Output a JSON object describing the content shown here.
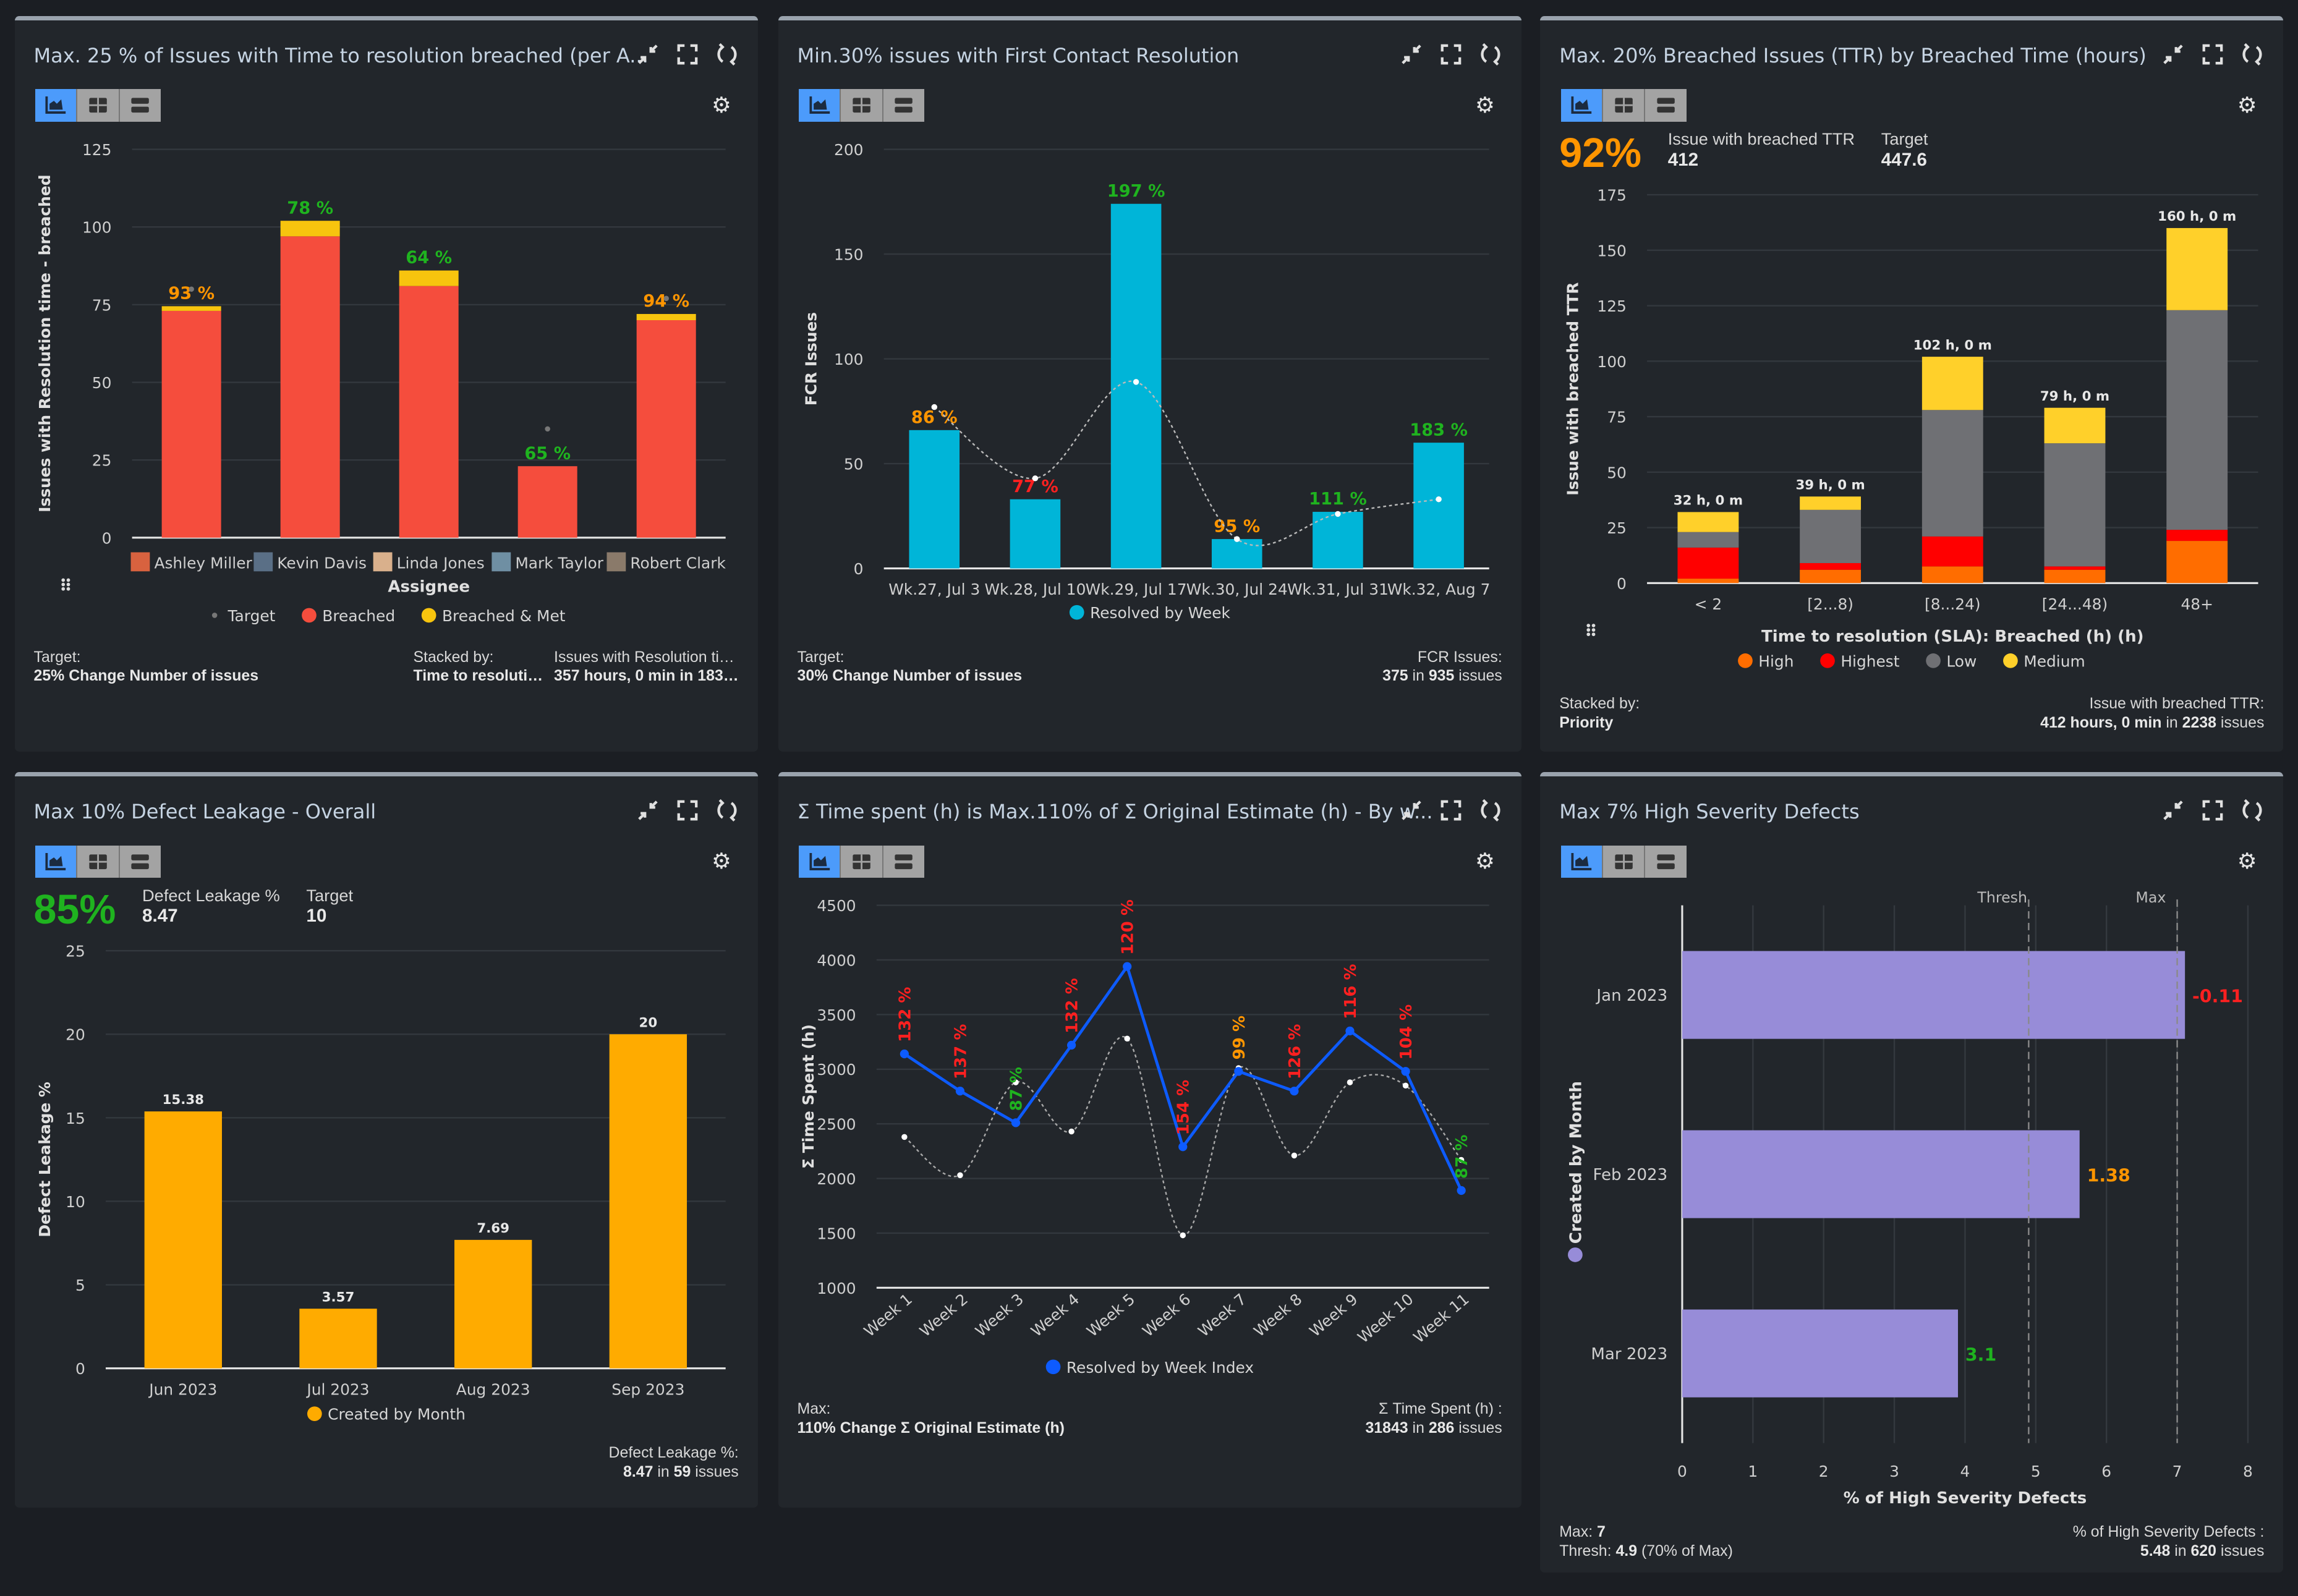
{
  "panels": [
    {
      "title": "Max. 25 % of Issues with Time to resolution breached (per A...",
      "footer": {
        "left_label": "Target:",
        "left_value": "25% Change Number of issues",
        "mid_label": "Stacked by:",
        "mid_value": "Time to resoluti…",
        "right_label": "Issues with Resolution ti…",
        "right_value": "357 hours, 0 min in 183…"
      }
    },
    {
      "title": "Min.30% issues with First Contact Resolution",
      "footer": {
        "left_label": "Target:",
        "left_value": "30% Change Number of issues",
        "right_label": "FCR Issues:",
        "right_value_num": "375",
        "right_value_in": " in ",
        "right_value_total": "935",
        "right_value_suffix": " issues"
      }
    },
    {
      "title": "Max. 20% Breached Issues (TTR) by Breached Time (hours)",
      "kpi": {
        "percent": "92%",
        "percent_color": "#ff9500",
        "metric_label": "Issue with breached TTR",
        "metric_value": "412",
        "target_label": "Target",
        "target_value": "447.6"
      },
      "footer": {
        "left_label": "Stacked by:",
        "left_value": "Priority",
        "right_label": "Issue with breached TTR:",
        "right_value_num": "412 hours, 0 min",
        "right_value_in": " in ",
        "right_value_total": "2238",
        "right_value_suffix": " issues"
      }
    },
    {
      "title": "Max 10% Defect Leakage - Overall",
      "kpi": {
        "percent": "85%",
        "percent_color": "#1fb31f",
        "metric_label": "Defect Leakage %",
        "metric_value": "8.47",
        "target_label": "Target",
        "target_value": "10"
      },
      "footer": {
        "right_label": "Defect Leakage %:",
        "right_value_num": "8.47",
        "right_value_in": " in ",
        "right_value_total": "59",
        "right_value_suffix": " issues"
      }
    },
    {
      "title": "Σ Time spent (h) is Max.110% of Σ Original Estimate (h) - By w...",
      "footer": {
        "left_label": "Max:",
        "left_value": "110% Change Σ Original Estimate (h)",
        "right_label": "Σ Time Spent (h) :",
        "right_value_num": "31843",
        "right_value_in": " in ",
        "right_value_total": "286",
        "right_value_suffix": " issues"
      }
    },
    {
      "title": "Max 7% High Severity Defects",
      "footer": {
        "max_label": "Max: ",
        "max_value": "7",
        "thresh_label": "Thresh: ",
        "thresh_value": "4.9",
        "thresh_suffix": " (70% of Max)",
        "right_label": "% of High Severity Defects :",
        "right_value_num": "5.48",
        "right_value_in": " in ",
        "right_value_total": "620",
        "right_value_suffix": " issues"
      }
    }
  ],
  "icons": {
    "collapse": "compress-icon",
    "fullscreen": "fullscreen-icon",
    "refresh": "refresh-icon",
    "settings": "gear-icon",
    "chart_view": "chart-icon",
    "table_view": "table-icon",
    "list_view": "list-icon",
    "drag": "drag-handle-icon"
  },
  "chart_data": [
    {
      "type": "bar",
      "stacked": true,
      "categories": [
        "Ashley Miller",
        "Kevin Davis",
        "Linda Jones",
        "Mark Taylor",
        "Robert Clark"
      ],
      "avatar_colors": [
        "#d8623f",
        "#5a6f86",
        "#d9b08c",
        "#6f8fa3",
        "#8a7a6a"
      ],
      "series": [
        {
          "name": "Breached",
          "color": "#f54d3d",
          "values": [
            73,
            97,
            81,
            23,
            70
          ]
        },
        {
          "name": "Breached & Met",
          "color": "#f7c40e",
          "values": [
            1.5,
            5,
            5,
            0,
            2
          ]
        }
      ],
      "target": {
        "name": "Target",
        "color": "#777777",
        "values": [
          80,
          null,
          null,
          35,
          77
        ]
      },
      "data_labels": [
        {
          "text": "93 %",
          "color": "#ff9500"
        },
        {
          "text": "78 %",
          "color": "#1fb31f"
        },
        {
          "text": "64 %",
          "color": "#1fb31f"
        },
        {
          "text": "65 %",
          "color": "#1fb31f"
        },
        {
          "text": "94 %",
          "color": "#ff9500"
        }
      ],
      "ylabel": "Issues with Resolution time - breached",
      "xlabel": "Assignee",
      "ylim": [
        0,
        125
      ],
      "ystep": 25,
      "grid": true,
      "legend": "bottom",
      "legend_items": [
        {
          "name": "Target",
          "color": "#777777",
          "small": true
        },
        {
          "name": "Breached",
          "color": "#f54d3d"
        },
        {
          "name": "Breached & Met",
          "color": "#f7c40e"
        }
      ]
    },
    {
      "type": "bar",
      "categories": [
        "Wk.27, Jul 3",
        "Wk.28, Jul 10",
        "Wk.29, Jul 17",
        "Wk.30, Jul 24",
        "Wk.31, Jul 31",
        "Wk.32, Aug 7"
      ],
      "series": [
        {
          "name": "Resolved by Week",
          "color": "#00b5d8",
          "values": [
            66,
            33,
            174,
            14,
            27,
            60
          ]
        }
      ],
      "target": {
        "color": "#bbbbbb",
        "values": [
          77,
          43,
          89,
          14,
          26,
          33
        ],
        "line": true
      },
      "data_labels": [
        {
          "text": "86 %",
          "color": "#ff9500"
        },
        {
          "text": "77 %",
          "color": "#ff2020"
        },
        {
          "text": "197 %",
          "color": "#1fb31f"
        },
        {
          "text": "95 %",
          "color": "#ff9500"
        },
        {
          "text": "111 %",
          "color": "#1fb31f"
        },
        {
          "text": "183 %",
          "color": "#1fb31f"
        }
      ],
      "ylabel": "FCR Issues",
      "xlabel": "",
      "ylim": [
        0,
        200
      ],
      "ystep": 50,
      "grid": true,
      "legend": "bottom",
      "legend_items": [
        {
          "name": "Resolved by Week",
          "color": "#00b5d8"
        }
      ]
    },
    {
      "type": "bar",
      "stacked": true,
      "categories": [
        "< 2",
        "[2...8)",
        "[8...24)",
        "[24...48)",
        "48+"
      ],
      "series": [
        {
          "name": "High",
          "color": "#ff6d00",
          "values": [
            2,
            6,
            7.5,
            6,
            19
          ]
        },
        {
          "name": "Highest",
          "color": "#ff0000",
          "values": [
            14,
            3,
            13.5,
            1.5,
            5
          ]
        },
        {
          "name": "Low",
          "color": "#6f7074",
          "values": [
            7,
            24,
            57,
            55.5,
            99
          ]
        },
        {
          "name": "Medium",
          "color": "#ffd02a",
          "values": [
            9,
            6,
            24,
            16,
            37
          ]
        }
      ],
      "data_labels": [
        {
          "text": "32 h, 0 m",
          "color": "#e8e8e8"
        },
        {
          "text": "39 h, 0 m",
          "color": "#e8e8e8"
        },
        {
          "text": "102 h, 0 m",
          "color": "#e8e8e8"
        },
        {
          "text": "79 h, 0 m",
          "color": "#e8e8e8"
        },
        {
          "text": "160 h, 0 m",
          "color": "#e8e8e8"
        }
      ],
      "ylabel": "Issue with breached TTR",
      "xlabel": "Time to resolution (SLA): Breached (h) (h)",
      "ylim": [
        0,
        175
      ],
      "ystep": 25,
      "grid": true,
      "legend": "bottom",
      "legend_items": [
        {
          "name": "High",
          "color": "#ff6d00"
        },
        {
          "name": "Highest",
          "color": "#ff0000"
        },
        {
          "name": "Low",
          "color": "#6f7074"
        },
        {
          "name": "Medium",
          "color": "#ffd02a"
        }
      ]
    },
    {
      "type": "bar",
      "categories": [
        "Jun 2023",
        "Jul 2023",
        "Aug 2023",
        "Sep 2023"
      ],
      "series": [
        {
          "name": "Created by Month",
          "color": "#ffab00",
          "values": [
            15.38,
            3.57,
            7.69,
            20
          ]
        }
      ],
      "data_labels": [
        {
          "text": "15.38",
          "color": "#e8e8e8"
        },
        {
          "text": "3.57",
          "color": "#e8e8e8"
        },
        {
          "text": "7.69",
          "color": "#e8e8e8"
        },
        {
          "text": "20",
          "color": "#e8e8e8"
        }
      ],
      "ylabel": "Defect Leakage %",
      "xlabel": "",
      "ylim": [
        0,
        25
      ],
      "ystep": 5,
      "grid": true,
      "legend": "bottom",
      "legend_items": [
        {
          "name": "Created by Month",
          "color": "#ffab00"
        }
      ]
    },
    {
      "type": "line",
      "categories": [
        "Week 1",
        "Week 2",
        "Week 3",
        "Week 4",
        "Week 5",
        "Week 6",
        "Week 7",
        "Week 8",
        "Week 9",
        "Week 10",
        "Week 11"
      ],
      "series": [
        {
          "name": "Resolved by Week Index",
          "color": "#0d5bff",
          "values": [
            3140,
            2800,
            2510,
            3220,
            3940,
            2290,
            2980,
            2800,
            3350,
            2980,
            1890
          ]
        }
      ],
      "target": {
        "color": "#aaaaaa",
        "values": [
          2380,
          2030,
          2880,
          2430,
          3280,
          1480,
          3010,
          2210,
          2880,
          2850,
          2170
        ],
        "line": true
      },
      "data_labels": [
        {
          "text": "132 %",
          "color": "#ff2020"
        },
        {
          "text": "137 %",
          "color": "#ff2020"
        },
        {
          "text": "87 %",
          "color": "#1fb31f"
        },
        {
          "text": "132 %",
          "color": "#ff2020"
        },
        {
          "text": "120 %",
          "color": "#ff2020"
        },
        {
          "text": "154 %",
          "color": "#ff2020"
        },
        {
          "text": "99 %",
          "color": "#ff9500"
        },
        {
          "text": "126 %",
          "color": "#ff2020"
        },
        {
          "text": "116 %",
          "color": "#ff2020"
        },
        {
          "text": "104 %",
          "color": "#ff2020"
        },
        {
          "text": "87 %",
          "color": "#1fb31f"
        }
      ],
      "ylabel": "Σ Time Spent (h)",
      "xlabel": "",
      "ylim": [
        1000,
        4500
      ],
      "ystep": 500,
      "grid": true,
      "legend": "bottom",
      "legend_items": [
        {
          "name": "Resolved by Week Index",
          "color": "#0d5bff"
        }
      ]
    },
    {
      "type": "hbar",
      "categories": [
        "Jan 2023",
        "Feb 2023",
        "Mar 2023"
      ],
      "series": [
        {
          "name": "Created by Month",
          "color": "#978cd8",
          "values": [
            7.11,
            5.62,
            3.9
          ]
        }
      ],
      "data_labels": [
        {
          "text": "-0.11",
          "color": "#ff2020"
        },
        {
          "text": "1.38",
          "color": "#ff9500"
        },
        {
          "text": "3.1",
          "color": "#1fb31f"
        }
      ],
      "reference_lines": [
        {
          "name": "Thresh",
          "value": 4.9
        },
        {
          "name": "Max",
          "value": 7
        }
      ],
      "ylabel": "Created by Month",
      "xlabel": "% of High Severity Defects",
      "xlim": [
        0,
        8
      ],
      "xstep": 1,
      "grid": true,
      "legend": "left"
    }
  ]
}
